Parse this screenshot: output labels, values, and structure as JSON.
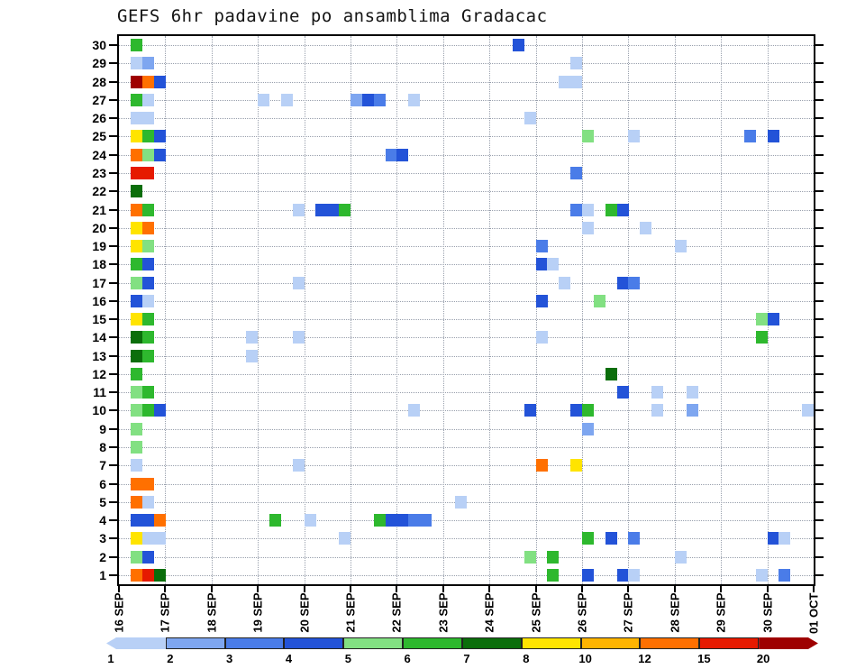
{
  "title": "GEFS 6hr padavine po ansamblima Gradacac",
  "chart_data": {
    "type": "heatmap",
    "title": "GEFS 6hr padavine po ansamblima Gradacac",
    "description": "GEFS ensemble 6-hourly precipitation plume heatmap for Gradacac; rows are ensemble members 1-30, columns are 6-hour time steps from 16 SEP to 01 OCT",
    "time_step_hours": 6,
    "x_axis": {
      "labels": [
        "16 SEP",
        "17 SEP",
        "18 SEP",
        "19 SEP",
        "20 SEP",
        "21 SEP",
        "22 SEP",
        "23 SEP",
        "24 SEP",
        "25 SEP",
        "26 SEP",
        "27 SEP",
        "28 SEP",
        "29 SEP",
        "30 SEP",
        "01 OCT"
      ],
      "steps_per_day": 4,
      "total_steps": 60
    },
    "y_axis": {
      "label": "ensemble member",
      "min": 1,
      "max": 30
    },
    "legend": {
      "position": "bottom",
      "unit": "mm/6hr",
      "labels": [
        "1",
        "2",
        "3",
        "4",
        "5",
        "6",
        "7",
        "8",
        "10",
        "12",
        "15",
        "20"
      ],
      "colors": [
        "#b8d0f6",
        "#7ea6f0",
        "#4a7ce8",
        "#2353d8",
        "#82e082",
        "#2eb82e",
        "#0b6e0b",
        "#ffe400",
        "#ffb400",
        "#ff7000",
        "#e61a00",
        "#9e0000"
      ]
    },
    "grid": {
      "horizontal": true,
      "vertical": true,
      "style": "dotted"
    },
    "cells_format": "[member, time_step_index, legend_level_index]",
    "cells": [
      [
        30,
        1,
        5
      ],
      [
        30,
        34,
        3
      ],
      [
        29,
        1,
        0
      ],
      [
        29,
        2,
        1
      ],
      [
        29,
        39,
        0
      ],
      [
        28,
        1,
        11
      ],
      [
        28,
        2,
        9
      ],
      [
        28,
        3,
        3
      ],
      [
        28,
        38,
        0
      ],
      [
        28,
        39,
        0
      ],
      [
        27,
        1,
        5
      ],
      [
        27,
        2,
        0
      ],
      [
        27,
        12,
        0
      ],
      [
        27,
        14,
        0
      ],
      [
        27,
        20,
        1
      ],
      [
        27,
        21,
        3
      ],
      [
        27,
        22,
        2
      ],
      [
        27,
        25,
        0
      ],
      [
        26,
        1,
        0
      ],
      [
        26,
        2,
        0
      ],
      [
        26,
        35,
        0
      ],
      [
        25,
        1,
        7
      ],
      [
        25,
        2,
        5
      ],
      [
        25,
        3,
        3
      ],
      [
        25,
        40,
        4
      ],
      [
        25,
        44,
        0
      ],
      [
        25,
        54,
        2
      ],
      [
        25,
        56,
        3
      ],
      [
        24,
        1,
        9
      ],
      [
        24,
        2,
        4
      ],
      [
        24,
        3,
        3
      ],
      [
        24,
        23,
        2
      ],
      [
        24,
        24,
        3
      ],
      [
        23,
        1,
        10
      ],
      [
        23,
        2,
        10
      ],
      [
        23,
        39,
        2
      ],
      [
        22,
        1,
        6
      ],
      [
        21,
        1,
        9
      ],
      [
        21,
        2,
        5
      ],
      [
        21,
        15,
        0
      ],
      [
        21,
        17,
        3
      ],
      [
        21,
        18,
        3
      ],
      [
        21,
        19,
        5
      ],
      [
        21,
        39,
        2
      ],
      [
        21,
        40,
        0
      ],
      [
        21,
        42,
        5
      ],
      [
        21,
        43,
        3
      ],
      [
        20,
        1,
        7
      ],
      [
        20,
        2,
        9
      ],
      [
        20,
        40,
        0
      ],
      [
        20,
        45,
        0
      ],
      [
        19,
        1,
        7
      ],
      [
        19,
        2,
        4
      ],
      [
        19,
        36,
        2
      ],
      [
        19,
        48,
        0
      ],
      [
        18,
        1,
        5
      ],
      [
        18,
        2,
        3
      ],
      [
        18,
        36,
        3
      ],
      [
        18,
        37,
        0
      ],
      [
        17,
        1,
        4
      ],
      [
        17,
        2,
        3
      ],
      [
        17,
        15,
        0
      ],
      [
        17,
        38,
        0
      ],
      [
        17,
        43,
        3
      ],
      [
        17,
        44,
        2
      ],
      [
        16,
        1,
        3
      ],
      [
        16,
        2,
        0
      ],
      [
        16,
        36,
        3
      ],
      [
        16,
        41,
        4
      ],
      [
        15,
        1,
        7
      ],
      [
        15,
        2,
        5
      ],
      [
        15,
        55,
        4
      ],
      [
        15,
        56,
        3
      ],
      [
        14,
        1,
        6
      ],
      [
        14,
        2,
        5
      ],
      [
        14,
        11,
        0
      ],
      [
        14,
        15,
        0
      ],
      [
        14,
        36,
        0
      ],
      [
        14,
        55,
        5
      ],
      [
        13,
        1,
        6
      ],
      [
        13,
        2,
        5
      ],
      [
        13,
        11,
        0
      ],
      [
        12,
        1,
        5
      ],
      [
        12,
        42,
        6
      ],
      [
        11,
        1,
        4
      ],
      [
        11,
        2,
        5
      ],
      [
        11,
        43,
        3
      ],
      [
        11,
        46,
        0
      ],
      [
        11,
        49,
        0
      ],
      [
        10,
        1,
        4
      ],
      [
        10,
        2,
        5
      ],
      [
        10,
        3,
        3
      ],
      [
        10,
        25,
        0
      ],
      [
        10,
        35,
        3
      ],
      [
        10,
        39,
        3
      ],
      [
        10,
        40,
        5
      ],
      [
        10,
        46,
        0
      ],
      [
        10,
        49,
        1
      ],
      [
        10,
        59,
        0
      ],
      [
        9,
        1,
        4
      ],
      [
        9,
        40,
        1
      ],
      [
        8,
        1,
        4
      ],
      [
        7,
        1,
        0
      ],
      [
        7,
        15,
        0
      ],
      [
        7,
        36,
        9
      ],
      [
        7,
        39,
        7
      ],
      [
        6,
        1,
        9
      ],
      [
        6,
        2,
        9
      ],
      [
        5,
        1,
        9
      ],
      [
        5,
        2,
        0
      ],
      [
        5,
        29,
        0
      ],
      [
        4,
        1,
        3
      ],
      [
        4,
        2,
        3
      ],
      [
        4,
        3,
        9
      ],
      [
        4,
        13,
        5
      ],
      [
        4,
        16,
        0
      ],
      [
        4,
        22,
        5
      ],
      [
        4,
        23,
        3
      ],
      [
        4,
        24,
        3
      ],
      [
        4,
        25,
        2
      ],
      [
        4,
        26,
        2
      ],
      [
        3,
        1,
        7
      ],
      [
        3,
        2,
        0
      ],
      [
        3,
        3,
        0
      ],
      [
        3,
        19,
        0
      ],
      [
        3,
        40,
        5
      ],
      [
        3,
        42,
        3
      ],
      [
        3,
        44,
        2
      ],
      [
        3,
        56,
        3
      ],
      [
        3,
        57,
        0
      ],
      [
        2,
        1,
        4
      ],
      [
        2,
        2,
        3
      ],
      [
        2,
        35,
        4
      ],
      [
        2,
        37,
        5
      ],
      [
        2,
        48,
        0
      ],
      [
        1,
        1,
        9
      ],
      [
        1,
        2,
        10
      ],
      [
        1,
        3,
        6
      ],
      [
        1,
        37,
        5
      ],
      [
        1,
        40,
        3
      ],
      [
        1,
        43,
        3
      ],
      [
        1,
        44,
        0
      ],
      [
        1,
        55,
        0
      ],
      [
        1,
        57,
        2
      ]
    ]
  }
}
